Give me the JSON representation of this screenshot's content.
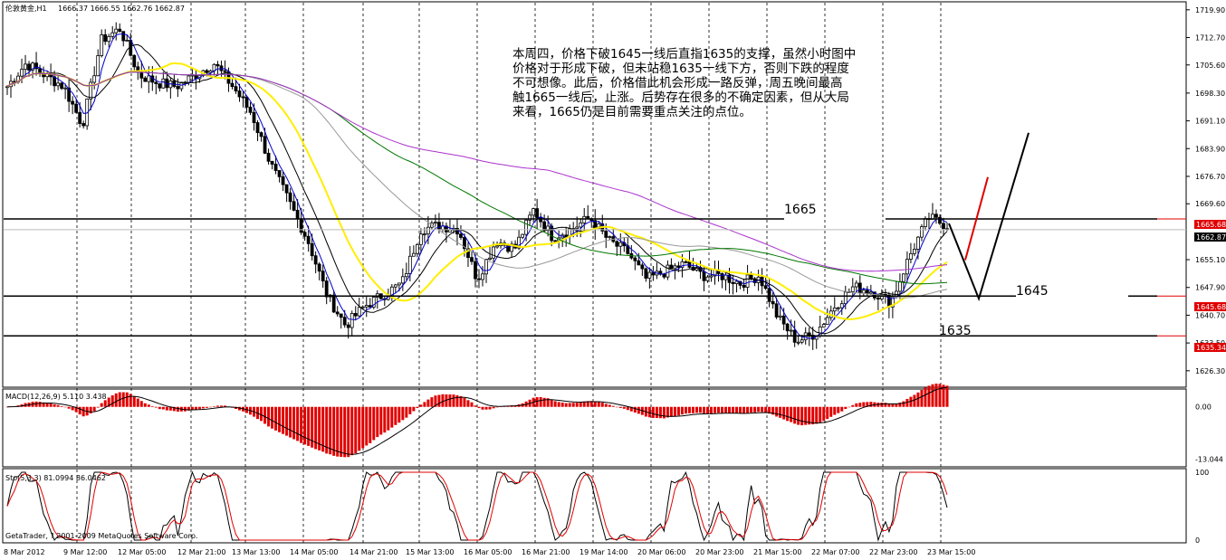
{
  "header": {
    "title": "伦敦黄金,H1",
    "ohlc": "1666.37 1666.55 1662.76 1662.87"
  },
  "annotation": "本周四，价格下破1645一线后直指1635的支撑，虽然小时图中\n价格对于形成下破，但未站稳1635一线下方，否则下跌的程度\n不可想像。此后，价格借此机会形成一路反弹，周五晚间最高\n触1665一线后，止涨。后势存在很多的不确定因素，但从大局\n来看，1665仍是目前需要重点关注的点位。",
  "levels": {
    "l1665": "1665",
    "l1645": "1645",
    "l1635": "1635"
  },
  "price_tags": {
    "t1": "1665.68",
    "t2": "1662.87",
    "t3": "1645.68",
    "t4": "1635.34"
  },
  "macd_label": "MACD(12,26,9) 5.110 3.438",
  "sto_label": "Sto(5,3,3) 81.0994 86.0462",
  "copyright": "GetaTrader, ? 2001-2009 MetaQuotes Software Corp.",
  "chart_data": {
    "type": "line",
    "main": {
      "ylim": [
        1622.5,
        1721.5
      ],
      "y_ticks": [
        "1719.90",
        "1712.70",
        "1705.60",
        "1698.30",
        "1691.10",
        "1683.90",
        "1676.70",
        "1669.60",
        "1662.87",
        "1655.10",
        "1647.90",
        "1640.70",
        "1633.50",
        "1626.30"
      ],
      "y_tick_values": [
        1719.9,
        1712.7,
        1705.6,
        1698.3,
        1691.1,
        1683.9,
        1676.7,
        1669.6,
        1662.87,
        1655.1,
        1647.9,
        1640.7,
        1633.5,
        1626.3
      ],
      "close_points": [
        1700,
        1706,
        1703,
        1700,
        1690,
        1712,
        1715,
        1703,
        1701,
        1700,
        1703,
        1706,
        1700,
        1693,
        1680,
        1670,
        1660,
        1646,
        1638,
        1643,
        1646,
        1649,
        1663,
        1664,
        1663,
        1650,
        1660,
        1658,
        1668,
        1661,
        1663,
        1666,
        1660,
        1657,
        1650,
        1652,
        1654,
        1651,
        1651,
        1649,
        1651,
        1640,
        1634,
        1636,
        1643,
        1648,
        1647,
        1644,
        1656,
        1666,
        1664
      ],
      "horizontal_levels": [
        1665.68,
        1645.68,
        1635.34
      ],
      "forecast_black": [
        [
          1664.5,
          1645.0,
          1688.0
        ]
      ],
      "forecast_red": [
        [
          1655.0,
          1676.5
        ]
      ]
    },
    "macd": {
      "ylim": [
        -14.5,
        4.0
      ],
      "y_ticks": [
        "0.00",
        "-13.044"
      ],
      "y_tick_values": [
        0,
        -13.044
      ]
    },
    "sto": {
      "ylim": [
        0,
        100
      ],
      "y_ticks": [
        "100",
        "0"
      ],
      "y_tick_values": [
        100,
        0
      ]
    },
    "x_ticks": [
      "8 Mar 2012",
      "9 Mar 12:00",
      "12 Mar 05:00",
      "12 Mar 21:00",
      "13 Mar 13:00",
      "14 Mar 05:00",
      "14 Mar 21:00",
      "15 Mar 13:00",
      "16 Mar 05:00",
      "16 Mar 21:00",
      "19 Mar 14:00",
      "20 Mar 06:00",
      "20 Mar 23:00",
      "21 Mar 15:00",
      "22 Mar 07:00",
      "22 Mar 23:00",
      "23 Mar 15:00"
    ]
  }
}
